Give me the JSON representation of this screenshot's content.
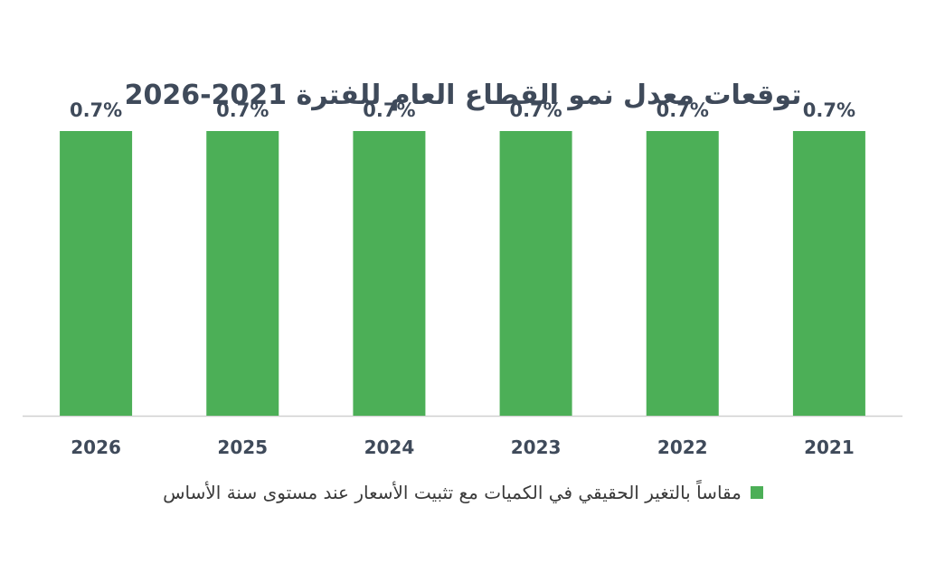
{
  "chart_data": {
    "type": "bar",
    "title": "توقعات معدل نمو القطاع العام للفترة 2021-2026",
    "categories": [
      "2026",
      "2025",
      "2024",
      "2023",
      "2022",
      "2021"
    ],
    "series": [
      {
        "name": "مقاساً بالتغير الحقيقي في الكميات مع تثبيت الأسعار عند مستوى سنة الأساس",
        "values": [
          0.7,
          0.7,
          0.7,
          0.7,
          0.7,
          0.7
        ]
      }
    ],
    "data_labels": [
      "0.7%",
      "0.7%",
      "0.7%",
      "0.7%",
      "0.7%",
      "0.7%"
    ],
    "ylim": [
      0,
      0.8
    ],
    "grid": false,
    "legend_position": "bottom",
    "bar_color": "#4caf57"
  }
}
